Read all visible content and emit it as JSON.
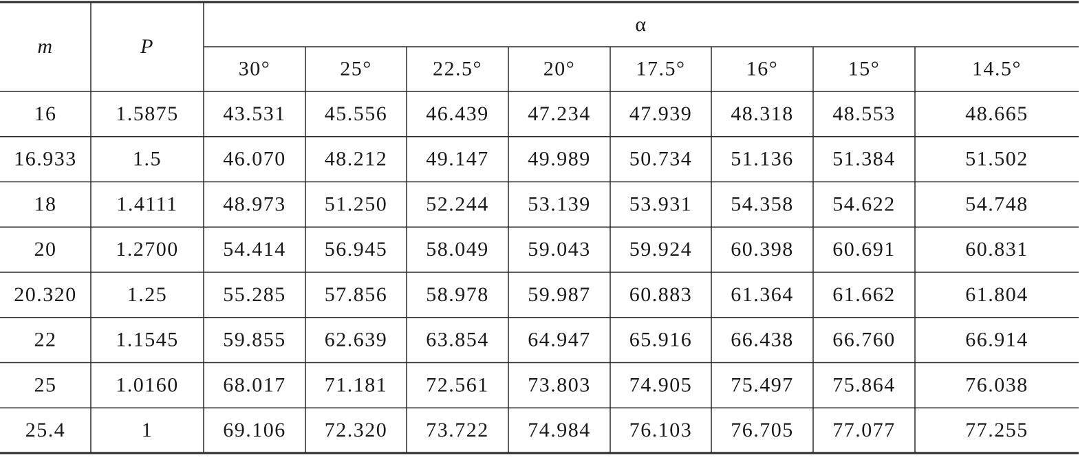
{
  "table": {
    "header": {
      "m": "m",
      "P": "P",
      "alpha": "α"
    },
    "angles": [
      "30°",
      "25°",
      "22.5°",
      "20°",
      "17.5°",
      "16°",
      "15°",
      "14.5°"
    ],
    "rows": [
      [
        "16",
        "1.5875",
        "43.531",
        "45.556",
        "46.439",
        "47.234",
        "47.939",
        "48.318",
        "48.553",
        "48.665"
      ],
      [
        "16.933",
        "1.5",
        "46.070",
        "48.212",
        "49.147",
        "49.989",
        "50.734",
        "51.136",
        "51.384",
        "51.502"
      ],
      [
        "18",
        "1.4111",
        "48.973",
        "51.250",
        "52.244",
        "53.139",
        "53.931",
        "54.358",
        "54.622",
        "54.748"
      ],
      [
        "20",
        "1.2700",
        "54.414",
        "56.945",
        "58.049",
        "59.043",
        "59.924",
        "60.398",
        "60.691",
        "60.831"
      ],
      [
        "20.320",
        "1.25",
        "55.285",
        "57.856",
        "58.978",
        "59.987",
        "60.883",
        "61.364",
        "61.662",
        "61.804"
      ],
      [
        "22",
        "1.1545",
        "59.855",
        "62.639",
        "63.854",
        "64.947",
        "65.916",
        "66.438",
        "66.760",
        "66.914"
      ],
      [
        "25",
        "1.0160",
        "68.017",
        "71.181",
        "72.561",
        "73.803",
        "74.905",
        "75.497",
        "75.864",
        "76.038"
      ],
      [
        "25.4",
        "1",
        "69.106",
        "72.320",
        "73.722",
        "74.984",
        "76.103",
        "76.705",
        "77.077",
        "77.255"
      ]
    ]
  }
}
